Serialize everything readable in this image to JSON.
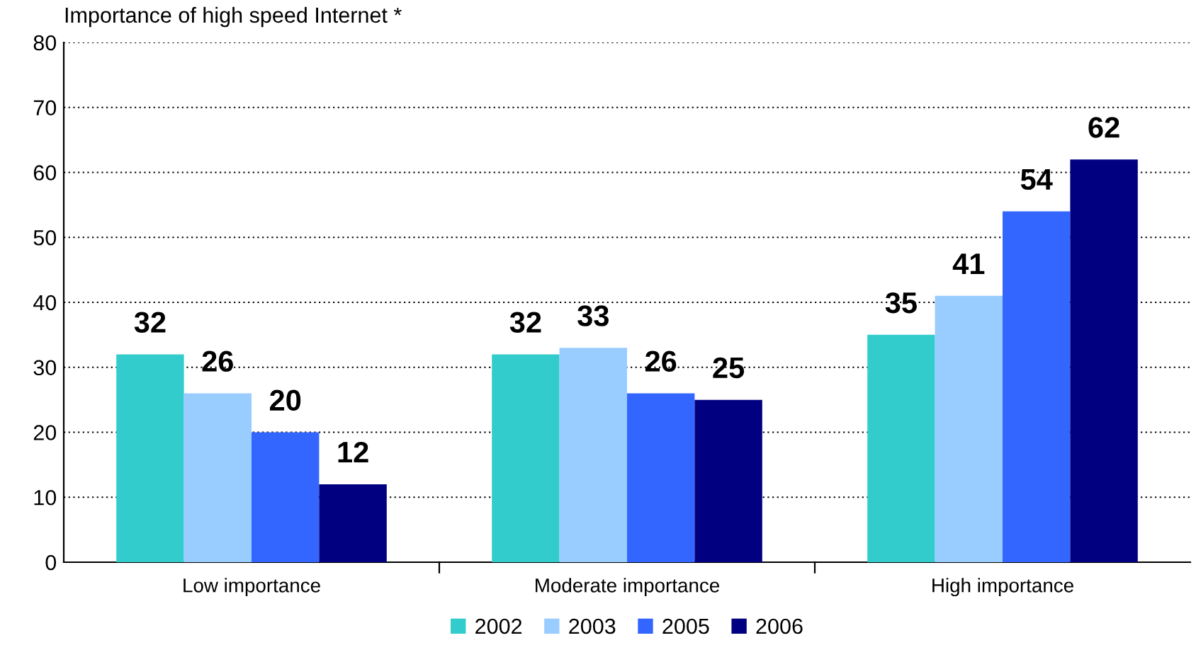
{
  "chart_data": {
    "type": "bar",
    "title": "Importance of high speed Internet *",
    "categories": [
      "Low importance",
      "Moderate importance",
      "High importance"
    ],
    "series": [
      {
        "name": "2002",
        "color": "#33cccc",
        "values": [
          32,
          32,
          35
        ]
      },
      {
        "name": "2003",
        "color": "#99ccff",
        "values": [
          26,
          33,
          41
        ]
      },
      {
        "name": "2005",
        "color": "#3366ff",
        "values": [
          20,
          26,
          54
        ]
      },
      {
        "name": "2006",
        "color": "#000080",
        "values": [
          12,
          25,
          62
        ]
      }
    ],
    "ylim": [
      0,
      80
    ],
    "yticks": [
      0,
      10,
      20,
      30,
      40,
      50,
      60,
      70,
      80
    ],
    "grid": "y",
    "legend": "bottom",
    "data_labels": true
  }
}
